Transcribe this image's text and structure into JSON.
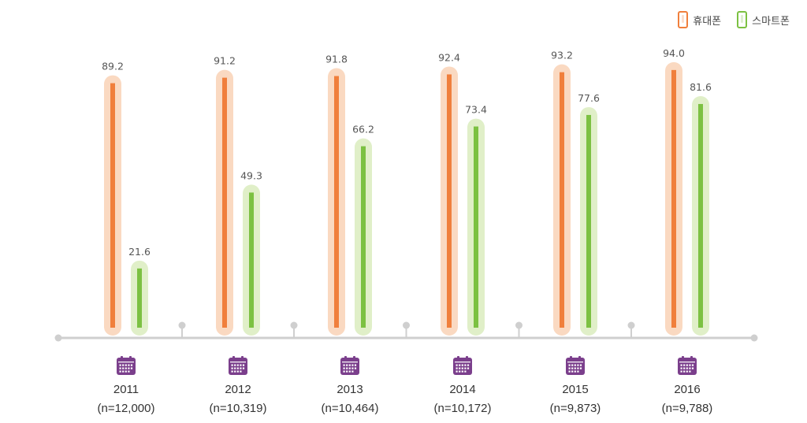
{
  "colors": {
    "mobile": "#f07f3c",
    "mobile_halo": "#fad9c1",
    "smart": "#7cc142",
    "smart_halo": "#e0efc8",
    "axis": "#cfcfcf",
    "calendar": "#7b3f8c"
  },
  "legend": [
    {
      "name": "휴대폰",
      "color": "#f07f3c",
      "icon": "mobile-phone-icon"
    },
    {
      "name": "스마트폰",
      "color": "#7cc142",
      "icon": "smartphone-icon"
    }
  ],
  "chart_data": {
    "type": "bar",
    "categories": [
      "2011",
      "2012",
      "2013",
      "2014",
      "2015",
      "2016"
    ],
    "sample_sizes": [
      "(n=12,000)",
      "(n=10,319)",
      "(n=10,464)",
      "(n=10,172)",
      "(n=9,873)",
      "(n=9,788)"
    ],
    "series": [
      {
        "name": "휴대폰",
        "values": [
          89.2,
          91.2,
          91.8,
          92.4,
          93.2,
          94.0
        ],
        "labels": [
          "89.2",
          "91.2",
          "91.8",
          "92.4",
          "93.2",
          "94.0"
        ]
      },
      {
        "name": "스마트폰",
        "values": [
          21.6,
          49.3,
          66.2,
          73.4,
          77.6,
          81.6
        ],
        "labels": [
          "21.6",
          "49.3",
          "66.2",
          "73.4",
          "77.6",
          "81.6"
        ]
      }
    ],
    "ylim": [
      0,
      100
    ],
    "grid": false,
    "legend_position": "top-right",
    "category_icon": "calendar-icon"
  }
}
